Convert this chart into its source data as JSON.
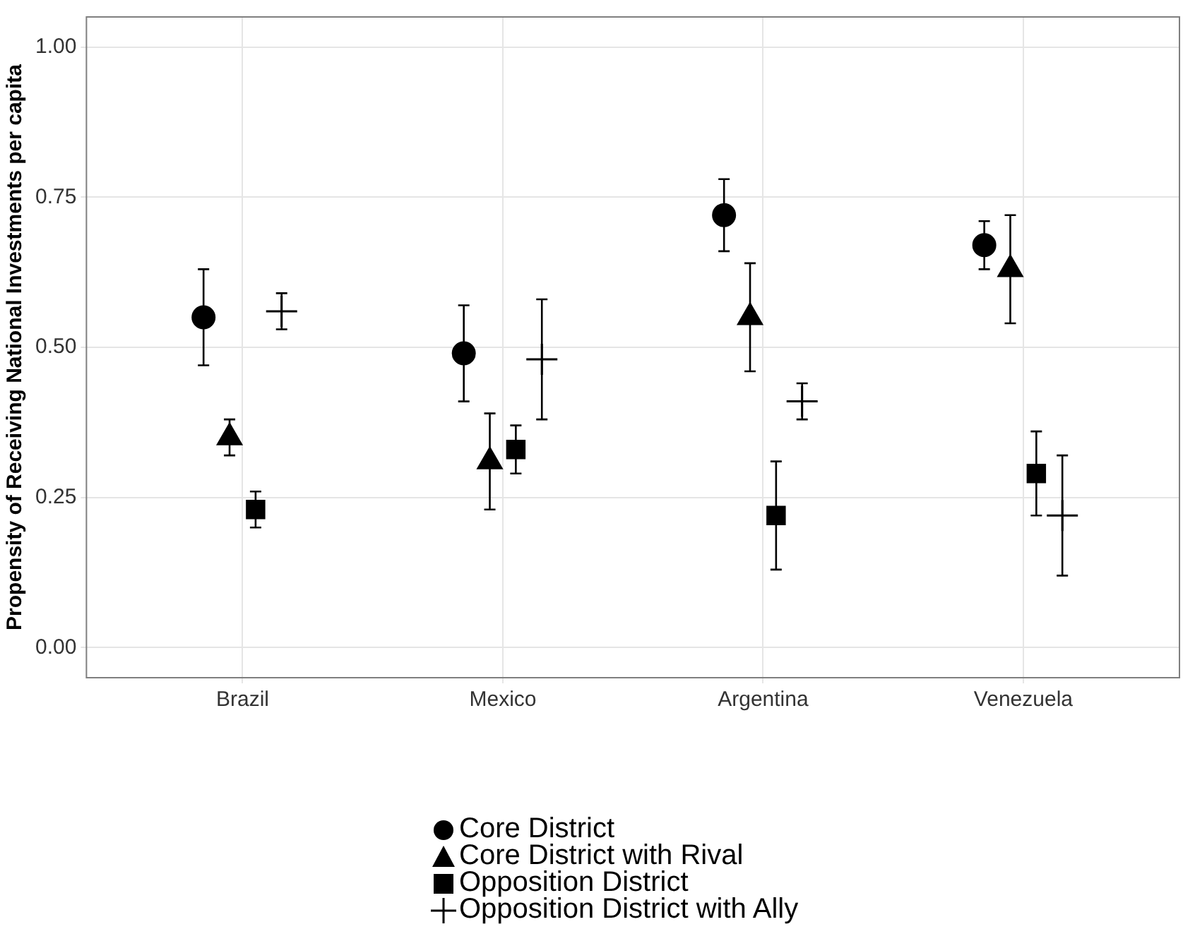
{
  "chart_data": {
    "type": "scatter",
    "ylabel": "Propensity of Receiving National Investments per capita",
    "categories": [
      "Brazil",
      "Mexico",
      "Argentina",
      "Venezuela"
    ],
    "series": [
      {
        "name": "Core District",
        "color": "#000000",
        "marker": "circle",
        "values": [
          0.55,
          0.49,
          0.72,
          0.67
        ],
        "errors": [
          [
            0.47,
            0.63
          ],
          [
            0.41,
            0.57
          ],
          [
            0.66,
            0.78
          ],
          [
            0.63,
            0.71
          ]
        ]
      },
      {
        "name": "Core District with Rival",
        "color": "#000000",
        "marker": "triangle",
        "values": [
          0.35,
          0.31,
          0.55,
          0.63
        ],
        "errors": [
          [
            0.32,
            0.38
          ],
          [
            0.23,
            0.39
          ],
          [
            0.46,
            0.64
          ],
          [
            0.54,
            0.72
          ]
        ]
      },
      {
        "name": "Opposition District",
        "color": "#000000",
        "marker": "square",
        "values": [
          0.23,
          0.33,
          0.22,
          0.29
        ],
        "errors": [
          [
            0.2,
            0.26
          ],
          [
            0.29,
            0.37
          ],
          [
            0.13,
            0.31
          ],
          [
            0.22,
            0.36
          ]
        ]
      },
      {
        "name": "Opposition District with Ally",
        "color": "#000000",
        "marker": "cross",
        "values": [
          0.56,
          0.48,
          0.41,
          0.22
        ],
        "errors": [
          [
            0.53,
            0.59
          ],
          [
            0.38,
            0.58
          ],
          [
            0.38,
            0.44
          ],
          [
            0.12,
            0.32
          ]
        ]
      }
    ],
    "ylim": [
      -0.05,
      1.05
    ],
    "yticks": [
      {
        "value": 0,
        "label": "0.00"
      },
      {
        "value": 0.25,
        "label": "0.25"
      },
      {
        "value": 0.5,
        "label": "0.50"
      },
      {
        "value": 0.75,
        "label": "0.75"
      },
      {
        "value": 1,
        "label": "1.00"
      }
    ],
    "grid": true,
    "legend": "bottom"
  }
}
